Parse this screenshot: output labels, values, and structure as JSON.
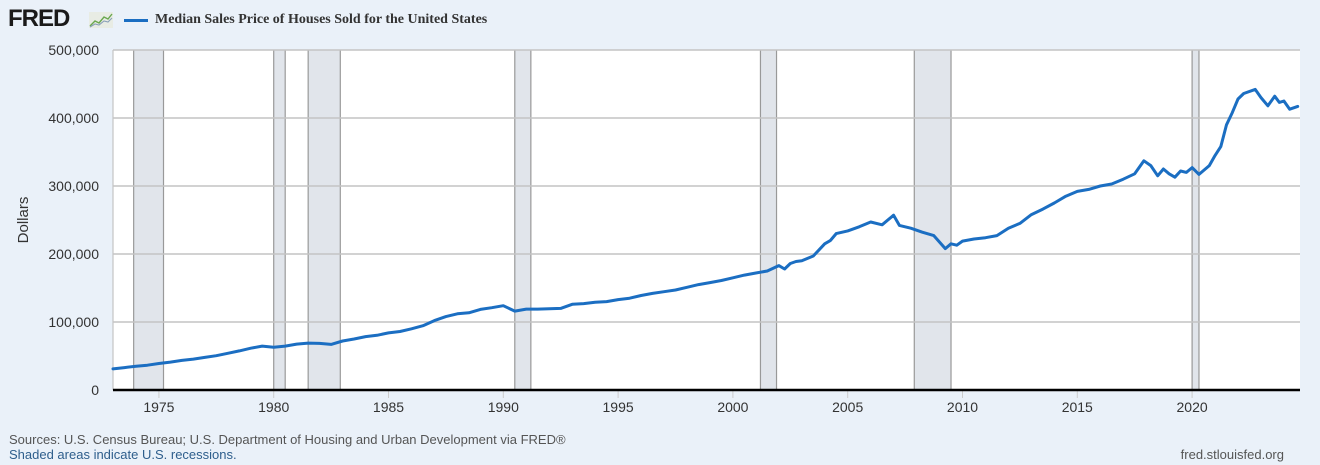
{
  "header": {
    "logo_text": "FRED",
    "logo_icon": "line-chart-icon",
    "series_title": "Median Sales Price of Houses Sold for the United States"
  },
  "footer": {
    "sources": "Sources: U.S. Census Bureau; U.S. Department of Housing and Urban Development via FRED®",
    "shaded_note": "Shaded areas indicate U.S. recessions.",
    "site": "fred.stlouisfed.org"
  },
  "colors": {
    "line": "#1b6ec2",
    "recession": "#e1e5eb",
    "background": "#eaf1f9",
    "plot": "#ffffff"
  },
  "chart_data": {
    "type": "line",
    "title": "Median Sales Price of Houses Sold for the United States",
    "xlabel": "",
    "ylabel": "Dollars",
    "xlim": [
      1973.0,
      2024.7
    ],
    "ylim": [
      0,
      500000
    ],
    "grid": true,
    "yticks": [
      0,
      100000,
      200000,
      300000,
      400000,
      500000
    ],
    "ytick_labels": [
      "0",
      "100,000",
      "200,000",
      "300,000",
      "400,000",
      "500,000"
    ],
    "xticks": [
      1975,
      1980,
      1985,
      1990,
      1995,
      2000,
      2005,
      2010,
      2015,
      2020
    ],
    "xtick_labels": [
      "1975",
      "1980",
      "1985",
      "1990",
      "1995",
      "2000",
      "2005",
      "2010",
      "2015",
      "2020"
    ],
    "recessions": [
      [
        1973.9,
        1975.2
      ],
      [
        1980.0,
        1980.5
      ],
      [
        1981.5,
        1982.9
      ],
      [
        1990.5,
        1991.2
      ],
      [
        2001.2,
        2001.9
      ],
      [
        2007.9,
        2009.5
      ],
      [
        2020.0,
        2020.3
      ]
    ],
    "series": [
      {
        "name": "Median Sales Price of Houses Sold for the United States",
        "x": [
          1973.0,
          1973.5,
          1974.0,
          1974.5,
          1975.0,
          1975.5,
          1976.0,
          1976.5,
          1977.0,
          1977.5,
          1978.0,
          1978.5,
          1979.0,
          1979.5,
          1980.0,
          1980.5,
          1981.0,
          1981.5,
          1982.0,
          1982.5,
          1983.0,
          1983.5,
          1984.0,
          1984.5,
          1985.0,
          1985.5,
          1986.0,
          1986.5,
          1987.0,
          1987.5,
          1988.0,
          1988.5,
          1989.0,
          1989.5,
          1990.0,
          1990.5,
          1991.0,
          1991.5,
          1992.0,
          1992.5,
          1993.0,
          1993.5,
          1994.0,
          1994.5,
          1995.0,
          1995.5,
          1996.0,
          1996.5,
          1997.0,
          1997.5,
          1998.0,
          1998.5,
          1999.0,
          1999.5,
          2000.0,
          2000.5,
          2001.0,
          2001.5,
          2002.0,
          2002.25,
          2002.5,
          2002.75,
          2003.0,
          2003.5,
          2004.0,
          2004.25,
          2004.5,
          2005.0,
          2005.5,
          2006.0,
          2006.5,
          2007.0,
          2007.25,
          2007.75,
          2008.25,
          2008.75,
          2009.25,
          2009.5,
          2009.75,
          2010.0,
          2010.5,
          2011.0,
          2011.5,
          2012.0,
          2012.5,
          2013.0,
          2013.5,
          2014.0,
          2014.5,
          2015.0,
          2015.5,
          2016.0,
          2016.5,
          2017.0,
          2017.5,
          2017.9,
          2018.2,
          2018.5,
          2018.75,
          2019.0,
          2019.25,
          2019.5,
          2019.75,
          2020.0,
          2020.3,
          2020.75,
          2021.0,
          2021.25,
          2021.5,
          2021.75,
          2022.0,
          2022.25,
          2022.75,
          2023.0,
          2023.3,
          2023.6,
          2023.8,
          2024.0,
          2024.25,
          2024.6
        ],
        "values": [
          31000,
          33000,
          35000,
          36500,
          39000,
          41000,
          43500,
          45500,
          48000,
          50500,
          54000,
          57500,
          61500,
          64500,
          63000,
          64500,
          67500,
          69000,
          68500,
          67000,
          72000,
          75000,
          78500,
          80500,
          84000,
          86000,
          90000,
          94500,
          102000,
          108000,
          112000,
          113500,
          118500,
          121000,
          124000,
          116000,
          119000,
          119000,
          119500,
          120000,
          126000,
          127000,
          129000,
          130000,
          133000,
          135000,
          139000,
          142000,
          144500,
          147000,
          151000,
          155000,
          158000,
          161000,
          165000,
          169000,
          172000,
          175000,
          183000,
          178000,
          186000,
          189000,
          190000,
          197000,
          215000,
          220000,
          230000,
          234000,
          240000,
          247000,
          243000,
          257000,
          242000,
          238000,
          232000,
          227000,
          208000,
          215000,
          213000,
          219000,
          222000,
          224000,
          227000,
          238000,
          245000,
          258000,
          266000,
          275000,
          285000,
          292000,
          295000,
          300000,
          303000,
          310000,
          318000,
          337000,
          330000,
          315000,
          325000,
          318000,
          313000,
          322000,
          320000,
          327000,
          317000,
          330000,
          345000,
          358000,
          390000,
          408000,
          428000,
          436000,
          442000,
          430000,
          418000,
          432000,
          423000,
          425000,
          413000,
          417000
        ]
      }
    ]
  }
}
